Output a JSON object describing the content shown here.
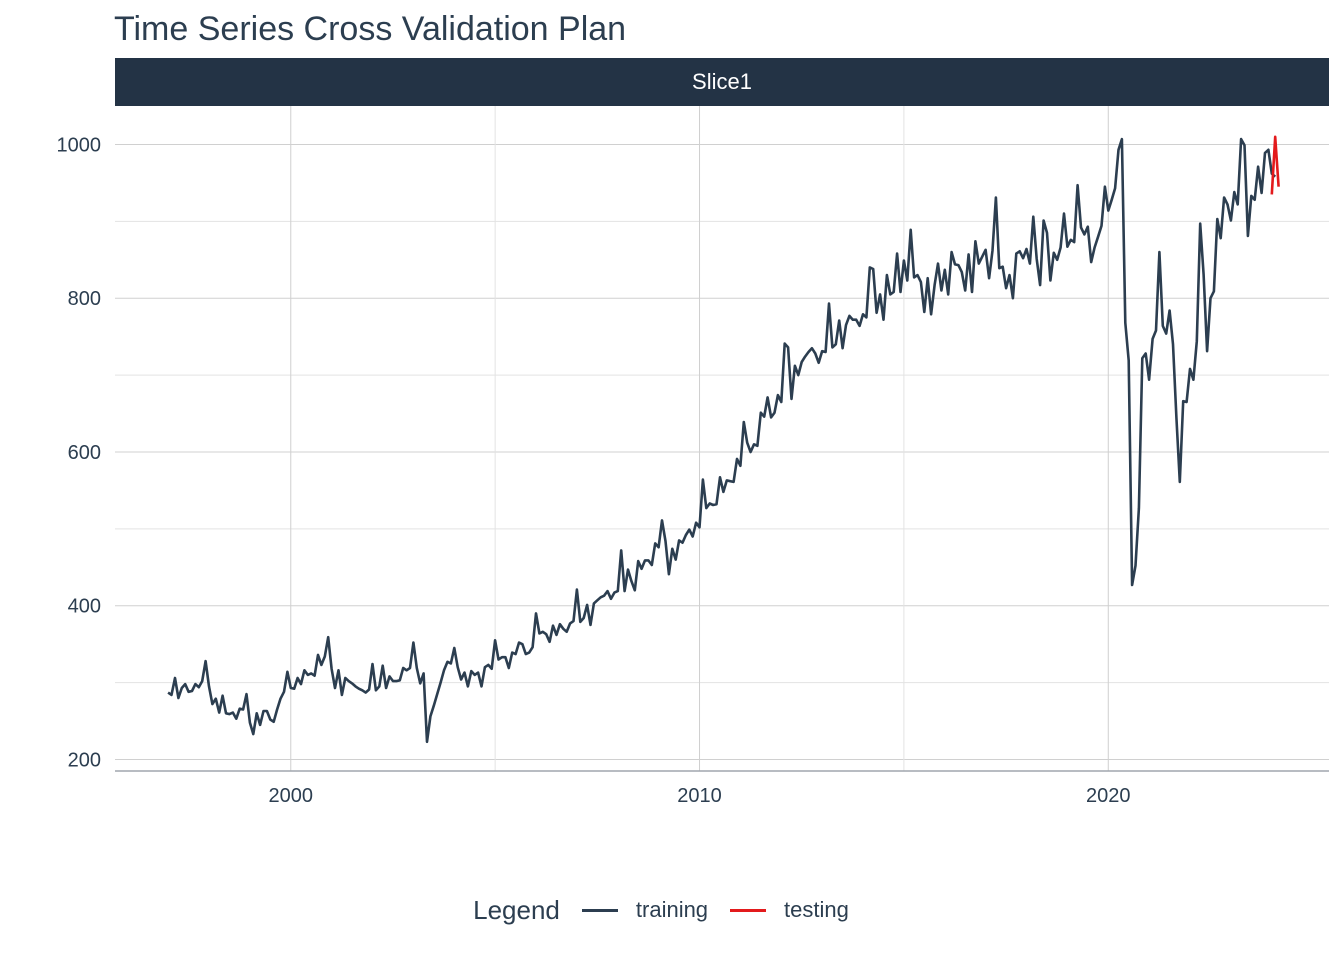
{
  "title": "Time Series Cross Validation Plan",
  "facet_label": "Slice1",
  "legend": {
    "title": "Legend",
    "items": [
      {
        "label": "training",
        "color": "#2c3e50"
      },
      {
        "label": "testing",
        "color": "#e31a1c"
      }
    ]
  },
  "colors": {
    "strip_bg": "#233345",
    "grid": "#d0d0d0",
    "axis_text": "#2c3e50"
  },
  "chart_data": {
    "type": "line",
    "title": "Time Series Cross Validation Plan",
    "xlabel": "",
    "ylabel": "",
    "x_ticks": [
      "2000",
      "2010",
      "2020"
    ],
    "y_ticks": [
      200,
      400,
      600,
      800,
      1000
    ],
    "xlim": [
      1995.7,
      2025.4
    ],
    "ylim": [
      185,
      1050
    ],
    "grid": true,
    "legend_position": "bottom",
    "series": [
      {
        "name": "training",
        "color": "#2c3e50",
        "x_start": 1997.0,
        "x_step": 0.0833333,
        "values": [
          287,
          284,
          306,
          280,
          293,
          298,
          288,
          289,
          298,
          294,
          302,
          328,
          295,
          272,
          279,
          261,
          283,
          260,
          259,
          261,
          253,
          266,
          265,
          285,
          248,
          233,
          260,
          245,
          263,
          263,
          252,
          249,
          265,
          279,
          288,
          314,
          293,
          292,
          306,
          298,
          316,
          310,
          312,
          309,
          336,
          323,
          334,
          359,
          318,
          293,
          316,
          284,
          306,
          302,
          299,
          295,
          292,
          290,
          287,
          291,
          324,
          290,
          295,
          322,
          293,
          308,
          302,
          302,
          303,
          319,
          316,
          319,
          352,
          319,
          299,
          312,
          223,
          256,
          270,
          285,
          300,
          316,
          327,
          325,
          345,
          320,
          304,
          313,
          295,
          315,
          310,
          313,
          295,
          320,
          323,
          318,
          355,
          330,
          333,
          333,
          319,
          339,
          337,
          352,
          350,
          337,
          339,
          346,
          390,
          364,
          366,
          363,
          353,
          374,
          362,
          376,
          370,
          366,
          377,
          380,
          421,
          379,
          384,
          401,
          375,
          403,
          407,
          411,
          413,
          419,
          409,
          417,
          419,
          472,
          419,
          447,
          432,
          420,
          458,
          448,
          459,
          459,
          453,
          481,
          476,
          511,
          484,
          441,
          474,
          460,
          485,
          482,
          492,
          499,
          490,
          508,
          502,
          564,
          527,
          533,
          531,
          532,
          567,
          548,
          563,
          562,
          561,
          591,
          582,
          639,
          612,
          600,
          610,
          608,
          651,
          646,
          671,
          645,
          651,
          674,
          665,
          741,
          736,
          669,
          712,
          700,
          717,
          724,
          730,
          735,
          728,
          716,
          731,
          730,
          793,
          736,
          740,
          771,
          735,
          765,
          777,
          772,
          772,
          764,
          779,
          775,
          840,
          838,
          781,
          805,
          772,
          830,
          805,
          808,
          858,
          808,
          849,
          823,
          889,
          827,
          830,
          821,
          782,
          826,
          779,
          817,
          845,
          810,
          837,
          805,
          860,
          844,
          843,
          834,
          810,
          857,
          808,
          874,
          845,
          854,
          863,
          826,
          862,
          931,
          839,
          841,
          813,
          830,
          800,
          858,
          861,
          852,
          864,
          845,
          906,
          851,
          817,
          901,
          885,
          823,
          859,
          850,
          866,
          910,
          867,
          876,
          873,
          947,
          892,
          883,
          893,
          847,
          866,
          880,
          894,
          945,
          914,
          928,
          943,
          993,
          1007,
          768,
          719,
          427,
          452,
          527,
          722,
          728,
          694,
          747,
          758,
          860,
          764,
          754,
          784,
          740,
          645,
          561,
          666,
          665,
          708,
          694,
          744,
          897,
          831,
          731,
          800,
          809,
          903,
          878,
          931,
          922,
          901,
          938,
          922,
          1007,
          999,
          881,
          933,
          928,
          971,
          937,
          989,
          993,
          962,
          958
        ]
      },
      {
        "name": "testing",
        "color": "#e31a1c",
        "x_start": 2024.0,
        "x_step": 0.0833333,
        "values": [
          935,
          1010,
          945
        ]
      }
    ]
  }
}
